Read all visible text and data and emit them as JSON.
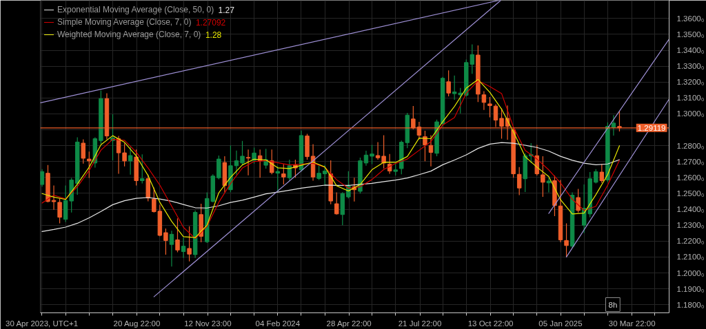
{
  "chart_data": {
    "type": "candlestick",
    "legend": "top left",
    "grid": true,
    "x": [
      "2023-04-30",
      "2023-05-07",
      "2023-05-14",
      "2023-05-21",
      "2023-05-28",
      "2023-06-04",
      "2023-06-11",
      "2023-06-18",
      "2023-06-25",
      "2023-07-02",
      "2023-07-09",
      "2023-07-16",
      "2023-07-23",
      "2023-07-30",
      "2023-08-06",
      "2023-08-13",
      "2023-08-20",
      "2023-08-27",
      "2023-09-03",
      "2023-09-10",
      "2023-09-17",
      "2023-09-24",
      "2023-10-01",
      "2023-10-08",
      "2023-10-15",
      "2023-10-22",
      "2023-10-29",
      "2023-11-05",
      "2023-11-12",
      "2023-11-19",
      "2023-11-26",
      "2023-12-03",
      "2023-12-10",
      "2023-12-17",
      "2023-12-24",
      "2023-12-31",
      "2024-01-07",
      "2024-01-14",
      "2024-01-21",
      "2024-01-28",
      "2024-02-04",
      "2024-02-11",
      "2024-02-18",
      "2024-02-25",
      "2024-03-03",
      "2024-03-10",
      "2024-03-17",
      "2024-03-24",
      "2024-03-31",
      "2024-04-07",
      "2024-04-14",
      "2024-04-21",
      "2024-04-28",
      "2024-05-05",
      "2024-05-12",
      "2024-05-19",
      "2024-05-26",
      "2024-06-02",
      "2024-06-09",
      "2024-06-16",
      "2024-06-23",
      "2024-06-30",
      "2024-07-07",
      "2024-07-14",
      "2024-07-21",
      "2024-07-28",
      "2024-08-04",
      "2024-08-11",
      "2024-08-18",
      "2024-08-25",
      "2024-09-01",
      "2024-09-08",
      "2024-09-15",
      "2024-09-22",
      "2024-09-29",
      "2024-10-06",
      "2024-10-13",
      "2024-10-20",
      "2024-10-27",
      "2024-11-03",
      "2024-11-10",
      "2024-11-17",
      "2024-11-24",
      "2024-12-01",
      "2024-12-08",
      "2024-12-15",
      "2024-12-22",
      "2024-12-29",
      "2025-01-05",
      "2025-01-12",
      "2025-01-19",
      "2025-01-26",
      "2025-02-02",
      "2025-02-09",
      "2025-02-16",
      "2025-02-23",
      "2025-03-02",
      "2025-03-09",
      "2025-03-16"
    ],
    "ohlc": [
      [
        1.2556,
        1.2653,
        1.2542,
        1.2637
      ],
      [
        1.2627,
        1.2679,
        1.2444,
        1.2449
      ],
      [
        1.2456,
        1.255,
        1.2397,
        1.2448
      ],
      [
        1.2444,
        1.2469,
        1.2312,
        1.235
      ],
      [
        1.2337,
        1.255,
        1.232,
        1.2456
      ],
      [
        1.2452,
        1.2597,
        1.238,
        1.2584
      ],
      [
        1.2563,
        1.2853,
        1.2491,
        1.2823
      ],
      [
        1.2816,
        1.284,
        1.2687,
        1.2721
      ],
      [
        1.2716,
        1.2763,
        1.2597,
        1.2704
      ],
      [
        1.2691,
        1.2853,
        1.2662,
        1.2844
      ],
      [
        1.2832,
        1.3147,
        1.281,
        1.3096
      ],
      [
        1.3096,
        1.313,
        1.284,
        1.2861
      ],
      [
        1.2832,
        1.2998,
        1.2708,
        1.2849
      ],
      [
        1.2844,
        1.2861,
        1.2623,
        1.2755
      ],
      [
        1.2755,
        1.2815,
        1.267,
        1.2704
      ],
      [
        1.2704,
        1.2793,
        1.2618,
        1.2738
      ],
      [
        1.2729,
        1.2776,
        1.255,
        1.258
      ],
      [
        1.258,
        1.2746,
        1.2563,
        1.2593
      ],
      [
        1.2593,
        1.2618,
        1.245,
        1.2471
      ],
      [
        1.2465,
        1.2537,
        1.238,
        1.2385
      ],
      [
        1.2388,
        1.2428,
        1.2231,
        1.2236
      ],
      [
        1.2253,
        1.2279,
        1.2115,
        1.2204
      ],
      [
        1.2179,
        1.2265,
        1.204,
        1.2243
      ],
      [
        1.2208,
        1.2343,
        1.213,
        1.2144
      ],
      [
        1.2134,
        1.2222,
        1.2094,
        1.2168
      ],
      [
        1.2154,
        1.2293,
        1.2073,
        1.2118
      ],
      [
        1.2115,
        1.2393,
        1.2094,
        1.2381
      ],
      [
        1.2367,
        1.2435,
        1.2193,
        1.223
      ],
      [
        1.2196,
        1.2506,
        1.2188,
        1.2468
      ],
      [
        1.2449,
        1.262,
        1.2444,
        1.2609
      ],
      [
        1.2598,
        1.2738,
        1.2589,
        1.2716
      ],
      [
        1.2694,
        1.2734,
        1.2506,
        1.2549
      ],
      [
        1.2523,
        1.2802,
        1.2508,
        1.2674
      ],
      [
        1.2674,
        1.2769,
        1.2618,
        1.2705
      ],
      [
        1.2691,
        1.283,
        1.2678,
        1.2734
      ],
      [
        1.2726,
        1.2776,
        1.2614,
        1.2722
      ],
      [
        1.2708,
        1.2788,
        1.2687,
        1.2754
      ],
      [
        1.2737,
        1.2776,
        1.2598,
        1.2705
      ],
      [
        1.2677,
        1.278,
        1.2656,
        1.2712
      ],
      [
        1.2705,
        1.2776,
        1.262,
        1.2631
      ],
      [
        1.2627,
        1.267,
        1.2513,
        1.2638
      ],
      [
        1.2623,
        1.2684,
        1.2556,
        1.2603
      ],
      [
        1.2598,
        1.2712,
        1.258,
        1.2674
      ],
      [
        1.2679,
        1.2712,
        1.2598,
        1.266
      ],
      [
        1.2648,
        1.2895,
        1.2636,
        1.2864
      ],
      [
        1.2861,
        1.2874,
        1.2712,
        1.2731
      ],
      [
        1.2734,
        1.2809,
        1.258,
        1.2603
      ],
      [
        1.2594,
        1.2674,
        1.2584,
        1.2627
      ],
      [
        1.2623,
        1.2678,
        1.2554,
        1.2641
      ],
      [
        1.2623,
        1.2708,
        1.2432,
        1.2452
      ],
      [
        1.2435,
        1.2506,
        1.2367,
        1.2371
      ],
      [
        1.2367,
        1.2508,
        1.23,
        1.2499
      ],
      [
        1.2478,
        1.264,
        1.2469,
        1.2549
      ],
      [
        1.2542,
        1.2598,
        1.2449,
        1.2523
      ],
      [
        1.2513,
        1.2725,
        1.2499,
        1.2705
      ],
      [
        1.2691,
        1.2768,
        1.2674,
        1.2741
      ],
      [
        1.2734,
        1.2805,
        1.2684,
        1.2748
      ],
      [
        1.2738,
        1.2822,
        1.2712,
        1.2724
      ],
      [
        1.2734,
        1.2866,
        1.2657,
        1.2691
      ],
      [
        1.2684,
        1.2748,
        1.2623,
        1.2641
      ],
      [
        1.2638,
        1.2691,
        1.2613,
        1.2648
      ],
      [
        1.2656,
        1.2832,
        1.262,
        1.2822
      ],
      [
        1.2819,
        1.3006,
        1.2785,
        1.2992
      ],
      [
        1.2968,
        1.305,
        1.2904,
        1.2911
      ],
      [
        1.2918,
        1.295,
        1.284,
        1.2866
      ],
      [
        1.2857,
        1.2894,
        1.2702,
        1.2805
      ],
      [
        1.2802,
        1.2866,
        1.267,
        1.2758
      ],
      [
        1.2752,
        1.2964,
        1.2734,
        1.295
      ],
      [
        1.2939,
        1.3232,
        1.2921,
        1.3224
      ],
      [
        1.3202,
        1.3274,
        1.311,
        1.3131
      ],
      [
        1.3127,
        1.3241,
        1.3089,
        1.3138
      ],
      [
        1.312,
        1.3163,
        1.3003,
        1.3131
      ],
      [
        1.3117,
        1.3342,
        1.3109,
        1.3323
      ],
      [
        1.3312,
        1.3437,
        1.3252,
        1.3373
      ],
      [
        1.337,
        1.343,
        1.3075,
        1.3124
      ],
      [
        1.312,
        1.3143,
        1.3025,
        1.3072
      ],
      [
        1.3063,
        1.3106,
        1.2978,
        1.3052
      ],
      [
        1.3049,
        1.306,
        1.2918,
        1.2961
      ],
      [
        1.2972,
        1.3035,
        1.2844,
        1.2922
      ],
      [
        1.2972,
        1.3053,
        1.2837,
        1.2922
      ],
      [
        1.29,
        1.2908,
        1.2598,
        1.2623
      ],
      [
        1.262,
        1.2665,
        1.2489,
        1.2534
      ],
      [
        1.2592,
        1.2751,
        1.2509,
        1.2737
      ],
      [
        1.2735,
        1.2816,
        1.269,
        1.2745
      ],
      [
        1.2737,
        1.2805,
        1.2613,
        1.2623
      ],
      [
        1.2617,
        1.2734,
        1.2478,
        1.257
      ],
      [
        1.2566,
        1.2598,
        1.2506,
        1.2578
      ],
      [
        1.258,
        1.2613,
        1.2357,
        1.2424
      ],
      [
        1.2421,
        1.2584,
        1.2193,
        1.2208
      ],
      [
        1.2204,
        1.2312,
        1.21,
        1.2172
      ],
      [
        1.2168,
        1.2506,
        1.2158,
        1.2489
      ],
      [
        1.2474,
        1.2528,
        1.238,
        1.2393
      ],
      [
        1.23,
        1.2556,
        1.2251,
        1.2407
      ],
      [
        1.2371,
        1.2634,
        1.235,
        1.2592
      ],
      [
        1.257,
        1.2653,
        1.2563,
        1.2637
      ],
      [
        1.2634,
        1.2684,
        1.2566,
        1.258
      ],
      [
        1.2584,
        1.2947,
        1.2571,
        1.2922
      ],
      [
        1.2914,
        1.2992,
        1.2864,
        1.2942
      ],
      [
        1.2921,
        1.3018,
        1.289,
        1.29119
      ]
    ],
    "colors": [
      "#0e8a47",
      "#f05f2a",
      "#f05f2a",
      "#f05f2a",
      "#0e8a47",
      "#0e8a47",
      "#0e8a47",
      "#f05f2a",
      "#f05f2a",
      "#0e8a47",
      "#0e8a47",
      "#f05f2a",
      "#0e8a47",
      "#f05f2a",
      "#f05f2a",
      "#0e8a47",
      "#f05f2a",
      "#0e8a47",
      "#f05f2a",
      "#f05f2a",
      "#f05f2a",
      "#f05f2a",
      "#0e8a47",
      "#f05f2a",
      "#0e8a47",
      "#f05f2a",
      "#0e8a47",
      "#f05f2a",
      "#0e8a47",
      "#0e8a47",
      "#0e8a47",
      "#f05f2a",
      "#0e8a47",
      "#0e8a47",
      "#0e8a47",
      "#f05f2a",
      "#0e8a47",
      "#f05f2a",
      "#0e8a47",
      "#f05f2a",
      "#0e8a47",
      "#f05f2a",
      "#0e8a47",
      "#f05f2a",
      "#0e8a47",
      "#f05f2a",
      "#f05f2a",
      "#0e8a47",
      "#0e8a47",
      "#f05f2a",
      "#f05f2a",
      "#0e8a47",
      "#0e8a47",
      "#f05f2a",
      "#0e8a47",
      "#0e8a47",
      "#0e8a47",
      "#f05f2a",
      "#f05f2a",
      "#f05f2a",
      "#0e8a47",
      "#0e8a47",
      "#0e8a47",
      "#f05f2a",
      "#f05f2a",
      "#f05f2a",
      "#f05f2a",
      "#0e8a47",
      "#0e8a47",
      "#f05f2a",
      "#0e8a47",
      "#0e8a47",
      "#0e8a47",
      "#0e8a47",
      "#f05f2a",
      "#f05f2a",
      "#f05f2a",
      "#f05f2a",
      "#f05f2a",
      "#f05f2a",
      "#f05f2a",
      "#f05f2a",
      "#0e8a47",
      "#0e8a47",
      "#f05f2a",
      "#f05f2a",
      "#0e8a47",
      "#f05f2a",
      "#f05f2a",
      "#f05f2a",
      "#0e8a47",
      "#f05f2a",
      "#0e8a47",
      "#0e8a47",
      "#0e8a47",
      "#f05f2a",
      "#0e8a47",
      "#0e8a47",
      "#f05f2a"
    ],
    "series": [
      {
        "name": "Exponential Moving Average (Close, 50, 0)",
        "type": "line",
        "color": "#e6e6e6",
        "x": [
          "2023-04-30",
          "2023-05-14",
          "2023-05-28",
          "2023-06-11",
          "2023-06-25",
          "2023-07-09",
          "2023-07-23",
          "2023-08-06",
          "2023-08-20",
          "2023-09-03",
          "2023-09-17",
          "2023-10-01",
          "2023-10-15",
          "2023-10-29",
          "2023-11-12",
          "2023-11-26",
          "2023-12-10",
          "2023-12-24",
          "2024-01-07",
          "2024-01-21",
          "2024-02-04",
          "2024-02-18",
          "2024-03-03",
          "2024-03-17",
          "2024-03-31",
          "2024-04-14",
          "2024-04-28",
          "2024-05-12",
          "2024-05-26",
          "2024-06-09",
          "2024-06-23",
          "2024-07-07",
          "2024-07-21",
          "2024-08-04",
          "2024-08-18",
          "2024-09-01",
          "2024-09-15",
          "2024-09-29",
          "2024-10-13",
          "2024-10-27",
          "2024-11-10",
          "2024-11-24",
          "2024-12-08",
          "2024-12-22",
          "2025-01-05",
          "2025-01-19",
          "2025-02-02",
          "2025-02-16",
          "2025-03-02",
          "2025-03-16"
        ],
        "values": [
          1.226,
          1.2273,
          1.2288,
          1.2312,
          1.2346,
          1.2386,
          1.2429,
          1.2454,
          1.2469,
          1.2474,
          1.2465,
          1.2451,
          1.243,
          1.241,
          1.2408,
          1.2422,
          1.2443,
          1.2457,
          1.2477,
          1.2497,
          1.2508,
          1.252,
          1.2533,
          1.2543,
          1.2552,
          1.255,
          1.255,
          1.2557,
          1.2563,
          1.2574,
          1.2584,
          1.2597,
          1.2618,
          1.264,
          1.268,
          1.271,
          1.2742,
          1.2783,
          1.281,
          1.282,
          1.2815,
          1.2803,
          1.2789,
          1.2766,
          1.2733,
          1.2708,
          1.269,
          1.268,
          1.2685,
          1.2712
        ]
      },
      {
        "name": "Simple Moving Average (Close, 7, 0)",
        "type": "line",
        "color": "#d40000",
        "x": [
          "2023-04-30",
          "2023-05-14",
          "2023-05-28",
          "2023-06-11",
          "2023-06-25",
          "2023-07-09",
          "2023-07-23",
          "2023-08-06",
          "2023-08-20",
          "2023-09-03",
          "2023-09-17",
          "2023-10-01",
          "2023-10-15",
          "2023-10-29",
          "2023-11-12",
          "2023-11-26",
          "2023-12-10",
          "2023-12-24",
          "2024-01-07",
          "2024-01-21",
          "2024-02-04",
          "2024-02-18",
          "2024-03-03",
          "2024-03-17",
          "2024-03-31",
          "2024-04-14",
          "2024-04-28",
          "2024-05-12",
          "2024-05-26",
          "2024-06-09",
          "2024-06-23",
          "2024-07-07",
          "2024-07-21",
          "2024-08-04",
          "2024-08-18",
          "2024-09-01",
          "2024-09-15",
          "2024-09-29",
          "2024-10-13",
          "2024-10-27",
          "2024-11-10",
          "2024-11-24",
          "2024-12-08",
          "2024-12-22",
          "2025-01-05",
          "2025-01-19",
          "2025-02-02",
          "2025-02-16",
          "2025-03-02",
          "2025-03-16"
        ],
        "values": [
          1.2439,
          1.2489,
          1.2465,
          1.2542,
          1.2644,
          1.2772,
          1.284,
          1.2834,
          1.2759,
          1.266,
          1.2552,
          1.242,
          1.2287,
          1.2216,
          1.2293,
          1.2444,
          1.2562,
          1.266,
          1.2701,
          1.2706,
          1.2693,
          1.2679,
          1.2683,
          1.269,
          1.2665,
          1.2586,
          1.2532,
          1.2542,
          1.2587,
          1.265,
          1.2688,
          1.2716,
          1.2771,
          1.2826,
          1.293,
          1.2977,
          1.313,
          1.3209,
          1.3172,
          1.3128,
          1.2917,
          1.277,
          1.2716,
          1.2648,
          1.2566,
          1.2463,
          1.2393,
          1.2419,
          1.2552,
          1.2709
        ]
      },
      {
        "name": "Weighted Moving Average (Close, 7, 0)",
        "type": "line",
        "color": "#e6e600",
        "x": [
          "2023-04-30",
          "2023-05-14",
          "2023-05-28",
          "2023-06-11",
          "2023-06-25",
          "2023-07-09",
          "2023-07-23",
          "2023-08-06",
          "2023-08-20",
          "2023-09-03",
          "2023-09-17",
          "2023-10-01",
          "2023-10-15",
          "2023-10-29",
          "2023-11-12",
          "2023-11-26",
          "2023-12-10",
          "2023-12-24",
          "2024-01-07",
          "2024-01-21",
          "2024-02-04",
          "2024-02-18",
          "2024-03-03",
          "2024-03-17",
          "2024-03-31",
          "2024-04-14",
          "2024-04-28",
          "2024-05-12",
          "2024-05-26",
          "2024-06-09",
          "2024-06-23",
          "2024-07-07",
          "2024-07-21",
          "2024-08-04",
          "2024-08-18",
          "2024-09-01",
          "2024-09-15",
          "2024-09-29",
          "2024-10-13",
          "2024-10-27",
          "2024-11-10",
          "2024-11-24",
          "2024-12-08",
          "2024-12-22",
          "2025-01-05",
          "2025-01-19",
          "2025-02-02",
          "2025-02-16",
          "2025-03-02",
          "2025-03-16"
        ],
        "values": [
          1.2499,
          1.2477,
          1.2462,
          1.2559,
          1.2665,
          1.2806,
          1.2863,
          1.2821,
          1.2735,
          1.2612,
          1.2444,
          1.2324,
          1.2228,
          1.2222,
          1.23,
          1.2504,
          1.2601,
          1.2679,
          1.2715,
          1.2711,
          1.2661,
          1.2656,
          1.2677,
          1.2697,
          1.2666,
          1.2548,
          1.2515,
          1.2556,
          1.2649,
          1.2696,
          1.2695,
          1.2732,
          1.2848,
          1.2844,
          1.2951,
          1.3047,
          1.3162,
          1.3216,
          1.3136,
          1.303,
          1.2887,
          1.2731,
          1.2665,
          1.2606,
          1.246,
          1.2371,
          1.2376,
          1.2492,
          1.2618,
          1.28
        ]
      },
      {
        "type": "line",
        "color": "#9d8fd4",
        "x": [
          "2023-04-28",
          "2024-10-24"
        ],
        "values": [
          1.307,
          1.3714
        ]
      },
      {
        "type": "line",
        "color": "#9d8fd4",
        "x": [
          "2023-09-10",
          "2024-10-26"
        ],
        "values": [
          1.185,
          1.3714
        ]
      },
      {
        "type": "line",
        "color": "#9d8fd4",
        "x": [
          "2024-12-22",
          "2025-05-14"
        ],
        "values": [
          1.2374,
          1.347
        ]
      },
      {
        "type": "line",
        "color": "#9d8fd4",
        "x": [
          "2025-01-12",
          "2025-05-14"
        ],
        "values": [
          1.21,
          1.3093
        ]
      }
    ],
    "xlim": [
      "2023-04-28",
      "2025-05-14"
    ],
    "xticks": [
      {
        "value": "2023-04-30",
        "label": "30 Apr 2023, UTC+1"
      },
      {
        "value": "2023-05-28",
        "label": null
      },
      {
        "value": "2023-06-25",
        "label": null
      },
      {
        "value": "2023-07-23",
        "label": null
      },
      {
        "value": "2023-08-20T22:00",
        "label": "20 Aug 22:00"
      },
      {
        "value": "2023-09-17",
        "label": null
      },
      {
        "value": "2023-10-15",
        "label": null
      },
      {
        "value": "2023-11-12T23:00",
        "label": "12 Nov 23:00"
      },
      {
        "value": "2023-12-10",
        "label": null
      },
      {
        "value": "2024-01-07",
        "label": null
      },
      {
        "value": "2024-02-04",
        "label": "04 Feb 2024"
      },
      {
        "value": "2024-03-03",
        "label": null
      },
      {
        "value": "2024-03-31",
        "label": null
      },
      {
        "value": "2024-04-28T22:00",
        "label": "28 Apr 22:00"
      },
      {
        "value": "2024-05-26",
        "label": null
      },
      {
        "value": "2024-06-23",
        "label": null
      },
      {
        "value": "2024-07-21T22:00",
        "label": "21 Jul 22:00"
      },
      {
        "value": "2024-08-18",
        "label": null
      },
      {
        "value": "2024-09-15",
        "label": null
      },
      {
        "value": "2024-10-13T22:00",
        "label": "13 Oct 22:00"
      },
      {
        "value": "2024-11-10",
        "label": null
      },
      {
        "value": "2024-12-08",
        "label": null
      },
      {
        "value": "2025-01-05",
        "label": "05 Jan 2025"
      },
      {
        "value": "2025-02-02",
        "label": null
      },
      {
        "value": "2025-03-02",
        "label": null
      },
      {
        "value": "2025-03-30T22:00",
        "label": "30 Mar 22:00"
      },
      {
        "value": "2025-04-27",
        "label": null
      }
    ],
    "ylim": [
      1.1749,
      1.3714
    ],
    "yticks": [
      {
        "value": 1.18,
        "label": "1.1800₀"
      },
      {
        "value": 1.19,
        "label": "1.1900₀"
      },
      {
        "value": 1.2,
        "label": "1.2000₀"
      },
      {
        "value": 1.21,
        "label": "1.2100₀"
      },
      {
        "value": 1.22,
        "label": "1.2200₀"
      },
      {
        "value": 1.23,
        "label": "1.2300₀"
      },
      {
        "value": 1.24,
        "label": "1.2400₀"
      },
      {
        "value": 1.25,
        "label": "1.2500₀"
      },
      {
        "value": 1.26,
        "label": "1.2600₀"
      },
      {
        "value": 1.27,
        "label": "1.2700₀"
      },
      {
        "value": 1.28,
        "label": "1.2800₀"
      },
      {
        "value": 1.29,
        "label": null
      },
      {
        "value": 1.3,
        "label": "1.3000₀"
      },
      {
        "value": 1.31,
        "label": "1.3100₀"
      },
      {
        "value": 1.32,
        "label": "1.3200₀"
      },
      {
        "value": 1.33,
        "label": "1.3300₀"
      },
      {
        "value": 1.34,
        "label": "1.3400₀"
      },
      {
        "value": 1.35,
        "label": "1.3500₀"
      },
      {
        "value": 1.36,
        "label": "1.3600₀"
      }
    ],
    "ref_lines": [
      {
        "axis": "y",
        "value": 1.29119,
        "label": "1.29119",
        "color": "#f05f2a"
      }
    ],
    "annotations": [
      "1.27",
      "1.27092",
      "1.28",
      "8h"
    ]
  }
}
